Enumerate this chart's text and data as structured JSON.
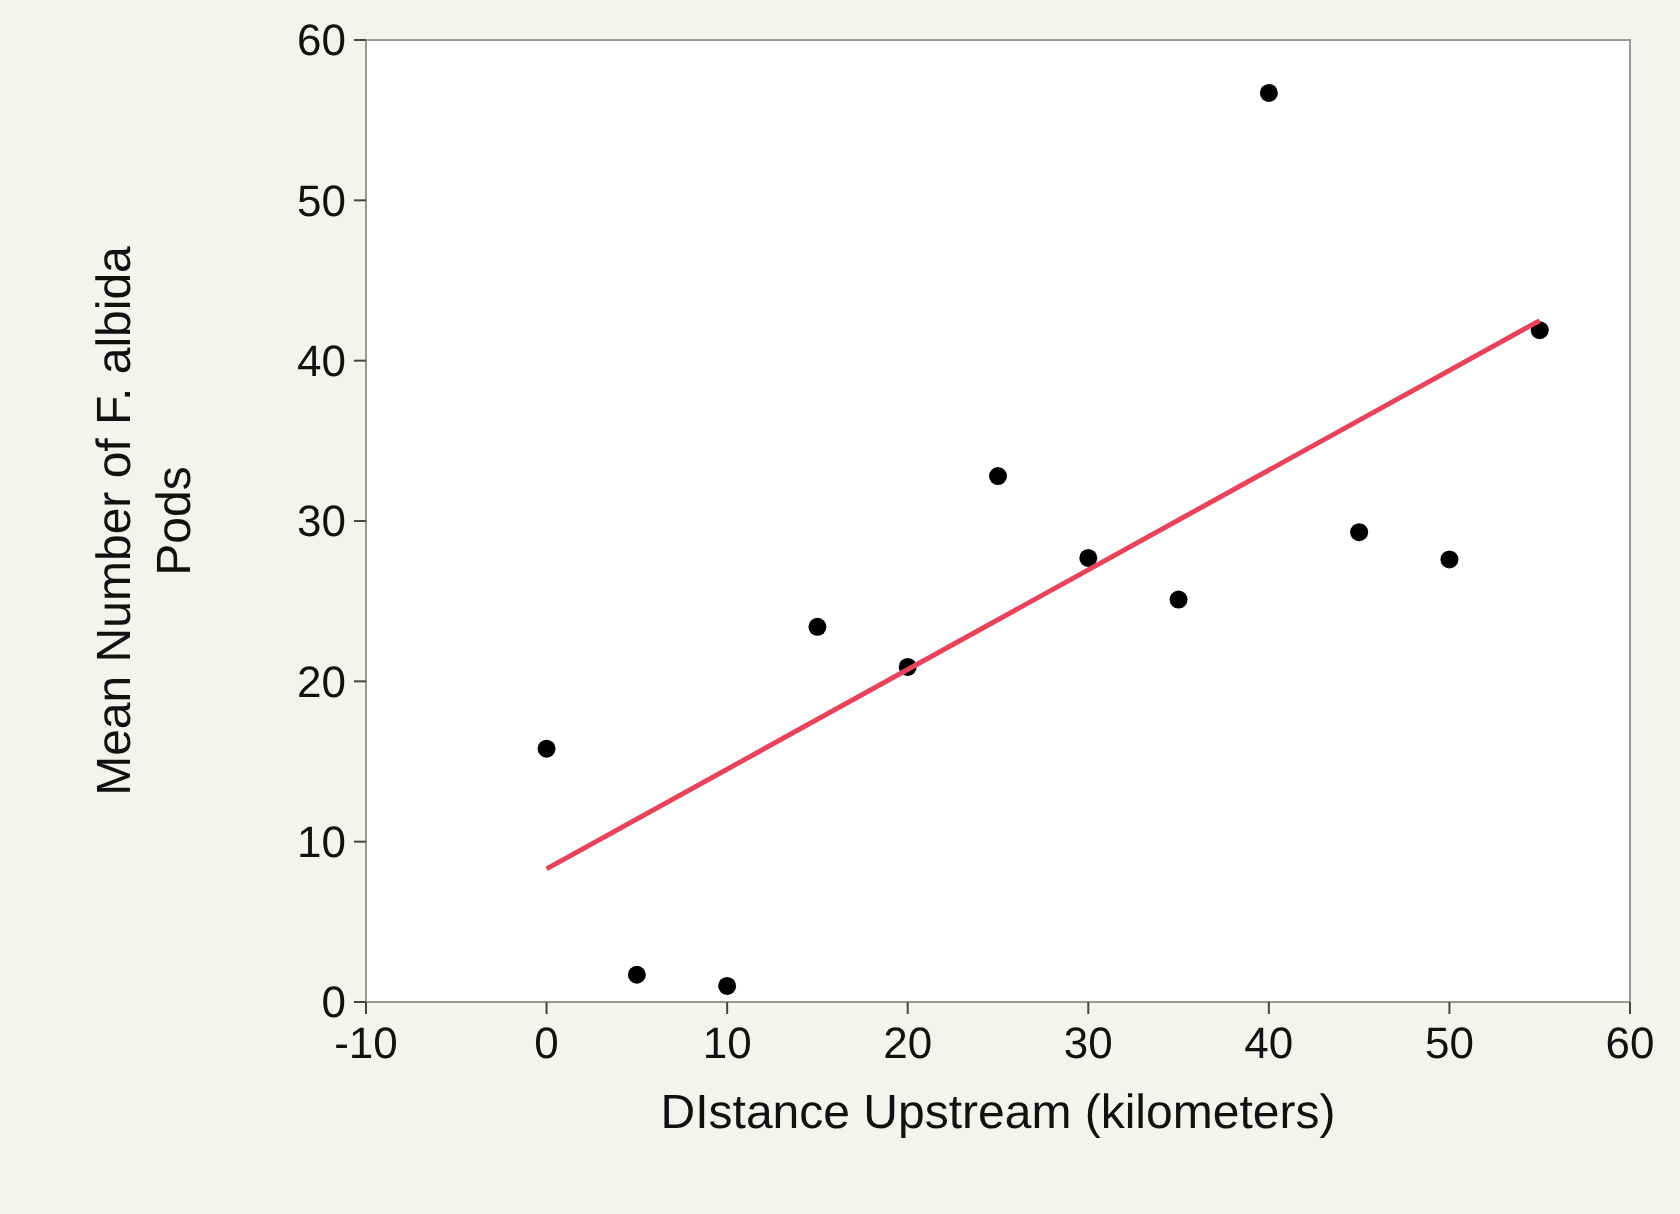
{
  "chart_data": {
    "type": "scatter",
    "xlabel": "DIstance Upstream (kilometers)",
    "ylabel": "Mean Number of F. albida Pods",
    "xlim": [
      -10,
      60
    ],
    "ylim": [
      0,
      60
    ],
    "xticks": [
      -10,
      0,
      10,
      20,
      30,
      40,
      50,
      60
    ],
    "yticks": [
      0,
      10,
      20,
      30,
      40,
      50,
      60
    ],
    "grid": false,
    "marker": "circle",
    "series": [
      {
        "color": "#000000",
        "x": [
          0,
          5,
          10,
          15,
          20,
          25,
          30,
          35,
          40,
          45,
          50,
          55
        ],
        "values": [
          15.8,
          1.7,
          1.0,
          23.4,
          20.9,
          32.8,
          27.7,
          25.1,
          56.7,
          29.3,
          27.6,
          41.9
        ]
      },
      {
        "type": "line",
        "color": "#e8435c",
        "x": [
          0,
          55
        ],
        "values": [
          8.3,
          42.5
        ],
        "marker": "none",
        "line_style": "solid"
      }
    ]
  }
}
